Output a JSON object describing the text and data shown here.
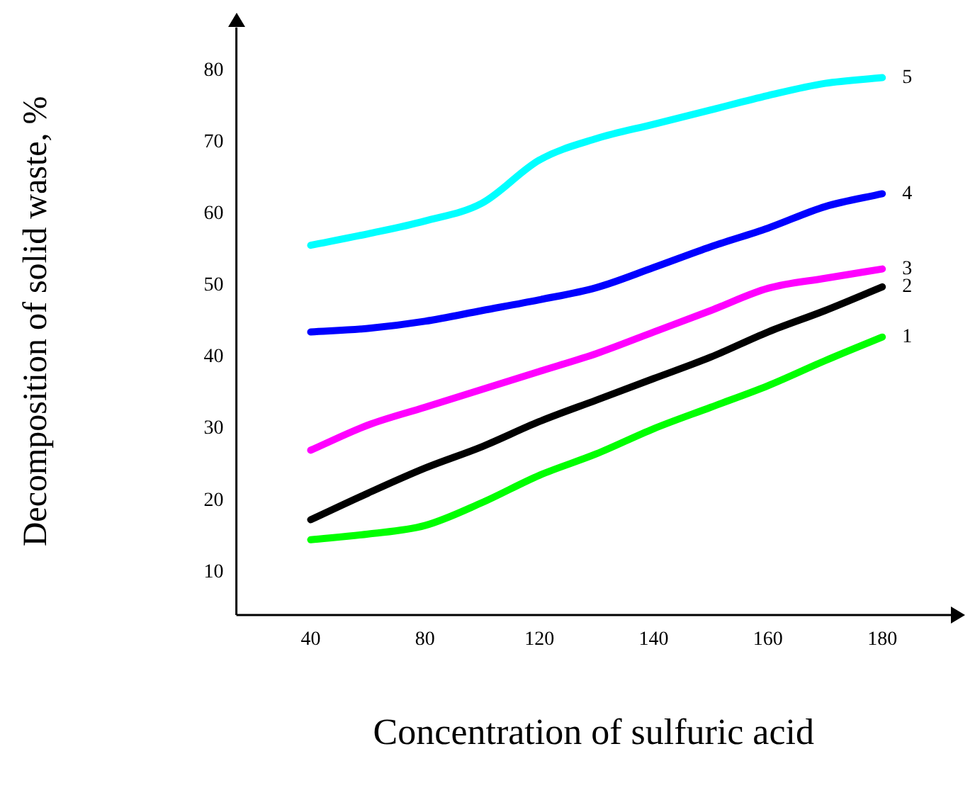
{
  "chart_data": {
    "type": "line",
    "xlabel": "Concentration of sulfuric acid",
    "ylabel": "Decomposition of solid waste, %",
    "categories": [
      "40",
      null,
      "80",
      null,
      "120",
      null,
      "140",
      null,
      "160",
      null,
      "180"
    ],
    "ylim": [
      4,
      86
    ],
    "yticks": [
      10,
      20,
      30,
      40,
      50,
      60,
      70,
      80
    ],
    "grid": false,
    "legend": false,
    "marker": "none",
    "line_style": "solid",
    "series": [
      {
        "name": "1",
        "color": "#00ff00",
        "values": [
          14.5,
          15.3,
          16.5,
          19.7,
          23.5,
          26.5,
          30,
          33,
          36,
          39.5,
          42.8
        ]
      },
      {
        "name": "2",
        "color": "#000000",
        "values": [
          17.3,
          21,
          24.5,
          27.5,
          31,
          34,
          37,
          40,
          43.5,
          46.5,
          49.8
        ]
      },
      {
        "name": "3",
        "color": "#ff00ff",
        "values": [
          27,
          30.5,
          33,
          35.5,
          38,
          40.5,
          43.5,
          46.5,
          49.6,
          51,
          52.3
        ]
      },
      {
        "name": "4",
        "color": "#0000ff",
        "values": [
          43.5,
          44,
          45,
          46.5,
          48,
          49.7,
          52.5,
          55.4,
          58,
          61,
          62.8
        ]
      },
      {
        "name": "5",
        "color": "#00ffff",
        "values": [
          55.6,
          57.2,
          59,
          61.5,
          67.5,
          70.5,
          72.5,
          74.5,
          76.5,
          78.2,
          79
        ]
      }
    ]
  }
}
